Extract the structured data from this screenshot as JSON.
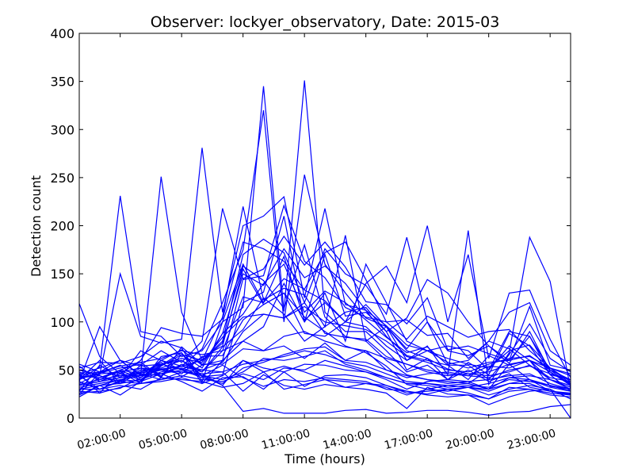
{
  "chart_data": {
    "type": "line",
    "title": "Observer: lockyer_observatory, Date: 2015-03",
    "xlabel": "Time (hours)",
    "ylabel": "Detection count",
    "xlim": [
      0,
      24
    ],
    "ylim": [
      0,
      400
    ],
    "x_tick_values": [
      2,
      5,
      8,
      11,
      14,
      17,
      20,
      23
    ],
    "x_tick_labels": [
      "02:00:00",
      "05:00:00",
      "08:00:00",
      "11:00:00",
      "14:00:00",
      "17:00:00",
      "20:00:00",
      "23:00:00"
    ],
    "y_ticks": [
      0,
      50,
      100,
      150,
      200,
      250,
      300,
      350,
      400
    ],
    "x_hours": [
      0,
      1,
      2,
      3,
      4,
      5,
      6,
      7,
      8,
      9,
      10,
      11,
      12,
      13,
      14,
      15,
      16,
      17,
      18,
      19,
      20,
      21,
      22,
      23,
      24
    ],
    "line_color": "#0000ff",
    "grid": false,
    "legend": "none",
    "series": [
      {
        "values": [
          119,
          64,
          46,
          60,
          94,
          88,
          85,
          103,
          183,
          176,
          163,
          133,
          122,
          100,
          118,
          95,
          70,
          62,
          40,
          50,
          38,
          46,
          32,
          28,
          25
        ]
      },
      {
        "values": [
          25,
          47,
          55,
          39,
          60,
          50,
          63,
          75,
          155,
          118,
          130,
          105,
          90,
          75,
          68,
          54,
          35,
          30,
          28,
          32,
          30,
          56,
          40,
          32,
          28
        ]
      },
      {
        "values": [
          35,
          40,
          50,
          58,
          43,
          66,
          52,
          88,
          158,
          143,
          114,
          180,
          105,
          85,
          80,
          60,
          45,
          40,
          38,
          36,
          50,
          75,
          60,
          33,
          30
        ]
      },
      {
        "values": [
          40,
          53,
          231,
          90,
          85,
          64,
          70,
          100,
          115,
          345,
          111,
          351,
          110,
          90,
          90,
          70,
          48,
          55,
          40,
          58,
          45,
          88,
          75,
          45,
          40
        ]
      },
      {
        "values": [
          45,
          48,
          60,
          45,
          251,
          110,
          60,
          105,
          220,
          123,
          135,
          128,
          95,
          190,
          80,
          95,
          60,
          75,
          45,
          195,
          35,
          68,
          188,
          142,
          30
        ]
      },
      {
        "values": [
          50,
          45,
          150,
          85,
          78,
          82,
          281,
          110,
          200,
          210,
          230,
          125,
          218,
          118,
          112,
          85,
          65,
          60,
          55,
          55,
          40,
          66,
          98,
          62,
          48
        ]
      },
      {
        "values": [
          28,
          55,
          42,
          70,
          60,
          71,
          55,
          60,
          80,
          95,
          140,
          100,
          130,
          80,
          160,
          120,
          80,
          70,
          75,
          70,
          50,
          90,
          85,
          50,
          35
        ]
      },
      {
        "values": [
          44,
          30,
          39,
          52,
          46,
          54,
          60,
          80,
          170,
          186,
          172,
          120,
          176,
          150,
          138,
          108,
          188,
          100,
          56,
          60,
          80,
          110,
          120,
          70,
          55
        ]
      },
      {
        "values": [
          38,
          95,
          60,
          44,
          60,
          54,
          48,
          70,
          126,
          120,
          168,
          102,
          120,
          100,
          140,
          158,
          120,
          200,
          100,
          170,
          62,
          130,
          133,
          82,
          42
        ]
      },
      {
        "values": [
          30,
          42,
          48,
          36,
          64,
          68,
          43,
          45,
          120,
          131,
          210,
          100,
          170,
          106,
          110,
          90,
          104,
          144,
          130,
          100,
          75,
          60,
          85,
          45,
          28
        ]
      },
      {
        "values": [
          52,
          58,
          57,
          64,
          80,
          73,
          38,
          100,
          160,
          120,
          145,
          134,
          172,
          183,
          144,
          100,
          82,
          106,
          95,
          84,
          90,
          92,
          70,
          52,
          36
        ]
      },
      {
        "values": [
          34,
          38,
          46,
          40,
          55,
          68,
          36,
          60,
          145,
          155,
          189,
          159,
          183,
          157,
          121,
          118,
          98,
          125,
          71,
          75,
          67,
          60,
          116,
          55,
          50
        ]
      },
      {
        "values": [
          42,
          44,
          38,
          50,
          51,
          54,
          72,
          120,
          175,
          320,
          100,
          253,
          160,
          130,
          104,
          95,
          72,
          100,
          70,
          65,
          75,
          57,
          90,
          48,
          34
        ]
      },
      {
        "values": [
          40,
          60,
          36,
          55,
          70,
          58,
          80,
          218,
          144,
          148,
          221,
          163,
          146,
          115,
          105,
          100,
          102,
          86,
          88,
          62,
          80,
          72,
          55,
          42,
          38
        ]
      },
      {
        "values": [
          46,
          26,
          49,
          42,
          58,
          43,
          55,
          88,
          108,
          140,
          160,
          110,
          132,
          120,
          102,
          84,
          68,
          74,
          55,
          40,
          65,
          55,
          60,
          40,
          30
        ]
      },
      {
        "values": [
          30,
          34,
          36,
          48,
          56,
          60,
          48,
          74,
          92,
          125,
          108,
          80,
          95,
          110,
          115,
          90,
          50,
          62,
          51,
          46,
          44,
          48,
          55,
          40,
          32
        ]
      },
      {
        "values": [
          48,
          40,
          44,
          44,
          50,
          46,
          64,
          65,
          102,
          118,
          130,
          88,
          85,
          100,
          95,
          75,
          60,
          70,
          58,
          52,
          58,
          60,
          65,
          50,
          40
        ]
      },
      {
        "values": [
          36,
          47,
          52,
          56,
          42,
          74,
          56,
          56,
          72,
          70,
          75,
          62,
          78,
          60,
          70,
          50,
          42,
          46,
          48,
          44,
          54,
          52,
          60,
          48,
          35
        ]
      },
      {
        "values": [
          26,
          28,
          31,
          42,
          56,
          51,
          44,
          34,
          60,
          52,
          48,
          56,
          55,
          50,
          48,
          40,
          30,
          38,
          40,
          38,
          30,
          42,
          40,
          28,
          24
        ]
      },
      {
        "values": [
          22,
          34,
          24,
          38,
          46,
          38,
          28,
          42,
          43,
          30,
          48,
          33,
          44,
          45,
          42,
          34,
          26,
          28,
          30,
          26,
          20,
          32,
          30,
          24,
          22
        ]
      },
      {
        "values": [
          54,
          38,
          42,
          47,
          50,
          48,
          44,
          55,
          42,
          33,
          40,
          38,
          42,
          40,
          38,
          30,
          28,
          25,
          30,
          32,
          24,
          30,
          34,
          30,
          20
        ]
      },
      {
        "values": [
          40,
          48,
          44,
          48,
          52,
          60,
          44,
          40,
          48,
          62,
          60,
          64,
          70,
          56,
          50,
          42,
          36,
          36,
          32,
          34,
          32,
          40,
          38,
          34,
          30
        ]
      },
      {
        "values": [
          32,
          36,
          40,
          44,
          46,
          50,
          42,
          36,
          52,
          58,
          66,
          72,
          74,
          60,
          58,
          50,
          44,
          40,
          36,
          38,
          40,
          44,
          46,
          36,
          30
        ]
      },
      {
        "values": [
          44,
          42,
          50,
          46,
          44,
          56,
          50,
          48,
          28,
          45,
          34,
          30,
          35,
          32,
          30,
          26,
          10,
          32,
          25,
          24,
          14,
          22,
          28,
          30,
          0
        ]
      },
      {
        "values": [
          30,
          30,
          38,
          36,
          40,
          48,
          46,
          34,
          7,
          10,
          5,
          5,
          5,
          8,
          9,
          5,
          6,
          8,
          8,
          6,
          3,
          6,
          7,
          12,
          14
        ]
      },
      {
        "values": [
          50,
          44,
          36,
          40,
          48,
          52,
          46,
          48,
          56,
          60,
          64,
          70,
          66,
          58,
          54,
          46,
          38,
          36,
          34,
          32,
          36,
          42,
          44,
          40,
          34
        ]
      },
      {
        "values": [
          38,
          30,
          34,
          30,
          42,
          40,
          38,
          32,
          36,
          48,
          30,
          35,
          40,
          32,
          36,
          32,
          24,
          30,
          34,
          36,
          30,
          36,
          36,
          28,
          26
        ]
      },
      {
        "values": [
          46,
          52,
          60,
          54,
          56,
          62,
          58,
          84,
          105,
          108,
          104,
          116,
          100,
          96,
          92,
          80,
          64,
          58,
          50,
          48,
          56,
          62,
          64,
          52,
          46
        ]
      },
      {
        "values": [
          28,
          26,
          32,
          36,
          38,
          42,
          36,
          44,
          60,
          48,
          54,
          48,
          40,
          38,
          36,
          34,
          28,
          24,
          22,
          24,
          20,
          28,
          30,
          26,
          24
        ]
      },
      {
        "values": [
          56,
          48,
          54,
          58,
          62,
          70,
          66,
          70,
          80,
          70,
          85,
          90,
          80,
          74,
          70,
          62,
          56,
          48,
          44,
          46,
          48,
          56,
          60,
          52,
          44
        ]
      },
      {
        "values": [
          34,
          38,
          42,
          46,
          40,
          44,
          40,
          38,
          46,
          40,
          52,
          50,
          60,
          54,
          48,
          42,
          36,
          34,
          30,
          32,
          28,
          36,
          40,
          34,
          28
        ]
      },
      {
        "values": [
          42,
          46,
          48,
          52,
          50,
          54,
          50,
          58,
          90,
          108,
          104,
          120,
          88,
          84,
          82,
          64,
          56,
          50,
          46,
          44,
          42,
          50,
          54,
          46,
          40
        ]
      },
      {
        "values": [
          24,
          34,
          40,
          38,
          54,
          66,
          60,
          78,
          150,
          138,
          176,
          146,
          158,
          140,
          112,
          96,
          76,
          70,
          62,
          56,
          52,
          70,
          76,
          52,
          38
        ]
      }
    ]
  }
}
